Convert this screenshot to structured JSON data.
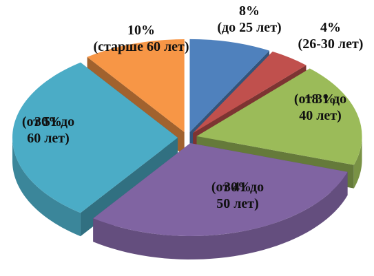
{
  "chart_data": {
    "type": "pie3d",
    "categories": [
      "(до 25 лет)",
      "(26-30 лет)",
      "(от 31 до 40 лет)",
      "(от 41 до 50 лет)",
      "(от 51 до 60 лет)",
      "(старше 60 лет)"
    ],
    "values": [
      8,
      4,
      18,
      30,
      30,
      10
    ],
    "value_labels": [
      "8%",
      "4%",
      "18 %",
      "30%",
      "30%",
      "10%"
    ],
    "colors": [
      "#4f81bd",
      "#c0504d",
      "#9bbb59",
      "#8064a2",
      "#4bacc6",
      "#f79646"
    ]
  }
}
